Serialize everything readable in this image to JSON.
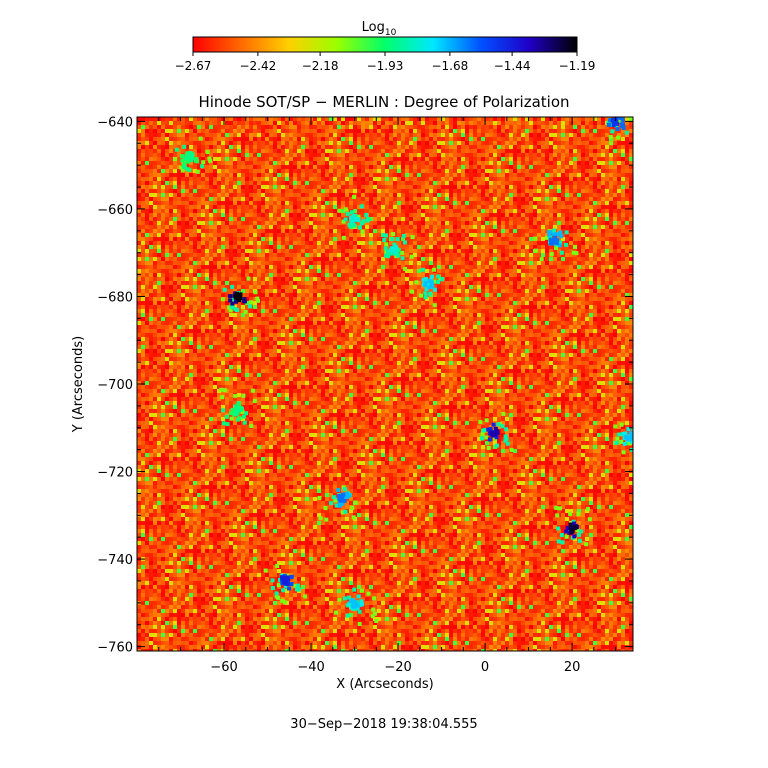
{
  "chart_data": {
    "type": "heatmap",
    "title": "Hinode SOT/SP − MERLIN : Degree of Polarization",
    "xlabel": "X (Arcseconds)",
    "ylabel": "Y (Arcseconds)",
    "xlim": [
      -80,
      34
    ],
    "ylim": [
      -761,
      -639
    ],
    "x_ticks": [
      -60,
      -40,
      -20,
      0,
      20
    ],
    "x_tick_labels": [
      "−60",
      "−40",
      "−20",
      "0",
      "20"
    ],
    "y_ticks": [
      -640,
      -660,
      -680,
      -700,
      -720,
      -740,
      -760
    ],
    "y_tick_labels": [
      "−640",
      "−660",
      "−680",
      "−700",
      "−720",
      "−740",
      "−760"
    ],
    "colorbar": {
      "label_base": "Log",
      "label_sub": "10",
      "range": [
        -2.67,
        -1.19
      ],
      "ticks": [
        -2.67,
        -2.42,
        -2.18,
        -1.93,
        -1.68,
        -1.44,
        -1.19
      ],
      "tick_labels": [
        "−2.67",
        "−2.42",
        "−2.18",
        "−1.93",
        "−1.68",
        "−1.44",
        "−1.19"
      ],
      "colormap": [
        "#ff0000",
        "#ff6a00",
        "#ffd000",
        "#9aff00",
        "#00ff6a",
        "#00e8ff",
        "#0050ff",
        "#2000c8",
        "#000000"
      ]
    },
    "background_level": -2.55,
    "features": [
      {
        "x": -57,
        "y": -680,
        "value": -1.2
      },
      {
        "x": 20,
        "y": -733,
        "value": -1.25
      },
      {
        "x": 2,
        "y": -711,
        "value": -1.35
      },
      {
        "x": -46,
        "y": -745,
        "value": -1.45
      },
      {
        "x": -33,
        "y": -726,
        "value": -1.6
      },
      {
        "x": -30,
        "y": -750,
        "value": -1.7
      },
      {
        "x": 16,
        "y": -667,
        "value": -1.6
      },
      {
        "x": -13,
        "y": -677,
        "value": -1.7
      },
      {
        "x": -30,
        "y": -662,
        "value": -1.8
      },
      {
        "x": -21,
        "y": -669,
        "value": -1.8
      },
      {
        "x": 30,
        "y": -640,
        "value": -1.5
      },
      {
        "x": -68,
        "y": -648,
        "value": -1.9
      },
      {
        "x": -57,
        "y": -706,
        "value": -1.9
      },
      {
        "x": 33,
        "y": -712,
        "value": -1.7
      }
    ]
  },
  "footer": {
    "timestamp": "30−Sep−2018 19:38:04.555"
  }
}
